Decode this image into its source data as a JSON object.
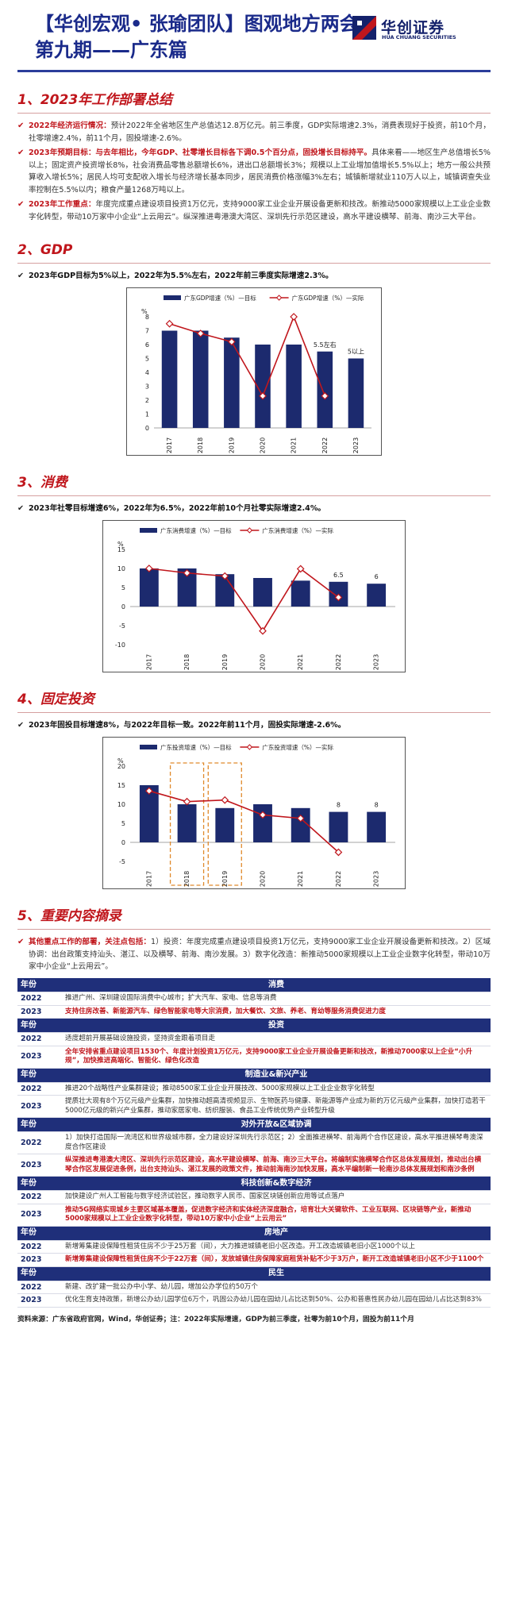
{
  "header": {
    "title_line1": "【华创宏观• 张瑜团队】图观地方两会",
    "title_line2": "第九期——广东篇",
    "logo_cn": "华创证券",
    "logo_en": "HUA CHUANG SECURITIES",
    "brand_color": "#1a2a8a"
  },
  "sections": {
    "s1": {
      "heading": "1、2023年工作部署总结",
      "bullets": [
        {
          "lead": "2022年经济运行情况：",
          "text": "预计2022年全省地区生产总值达12.8万亿元。前三季度，GDP实际增速2.3%，消费表现好于投资，前10个月，社零增速2.4%，前11个月，固投增速-2.6%。",
          "bold": ""
        },
        {
          "lead": "2023年预期目标：与去年相比，今年GDP、社零增长目标各下调0.5个百分点，固投增长目标持平。",
          "text": "具体来看——地区生产总值增长5%以上；固定资产投资增长8%，社会消费品零售总额增长6%，进出口总额增长3%；规模以上工业增加值增长5.5%以上；地方一般公共预算收入增长5%；居民人均可支配收入增长与经济增长基本同步，居民消费价格涨幅3%左右；城镇新增就业110万人以上，城镇调查失业率控制在5.5%以内；粮食产量1268万吨以上。",
          "bold": ""
        },
        {
          "lead": "2023年工作重点：",
          "text": "年度完成重点建设项目投资1万亿元，支持9000家工业企业开展设备更新和技改。新推动5000家规模以上工业企业数字化转型，带动10万家中小企业“上云用云”。纵深推进粤港澳大湾区、深圳先行示范区建设，高水平建设横琴、前海、南沙三大平台。",
          "bold": ""
        }
      ]
    },
    "s2": {
      "heading": "2、GDP",
      "summary": "2023年GDP目标为5%以上，2022年为5.5%左右，2022年前三季度实际增速2.3%。"
    },
    "s3": {
      "heading": "3、消费",
      "summary": "2023年社零目标增速6%，2022年为6.5%，2022年前10个月社零实际增速2.4%。"
    },
    "s4": {
      "heading": "4、固定投资",
      "summary": "2023年固投目标增速8%，与2022年目标一致。2022年前11个月，固投实际增速-2.6%。"
    },
    "s5": {
      "heading": "5、重要内容摘录",
      "intro_lead": "其他重点工作的部署，关注点包括：",
      "intro_text": "1）投资：年度完成重点建设项目投资1万亿元，支持9000家工业企业开展设备更新和技改。2）区域协调：出台政策支持汕头、湛江、以及横琴、前海、南沙发展。3）数字化改造：新推动5000家规模以上工业企业数字化转型，带动10万家中小企业“上云用云”。"
    }
  },
  "chart_data": [
    {
      "type": "bar",
      "id": "gdp",
      "categories": [
        "2017",
        "2018",
        "2019",
        "2020",
        "2021",
        "2022",
        "2023"
      ],
      "unit_label": "%",
      "series": [
        {
          "name": "广东GDP增速（%）—目标",
          "kind": "bar",
          "color": "#1c2a6e",
          "values": [
            7,
            7,
            6.5,
            6,
            6,
            5.5,
            5
          ]
        },
        {
          "name": "广东GDP增速（%）—实际",
          "kind": "line",
          "color": "#c0161c",
          "values": [
            7.5,
            6.8,
            6.2,
            2.3,
            8.0,
            2.3,
            null
          ]
        }
      ],
      "bar_labels": {
        "5": "5.5左右",
        "6": "5以上"
      },
      "yticks": [
        0,
        1,
        2,
        3,
        4,
        5,
        6,
        7,
        8
      ],
      "ylim": [
        0,
        8
      ]
    },
    {
      "type": "bar",
      "id": "consumption",
      "categories": [
        "2017",
        "2018",
        "2019",
        "2020",
        "2021",
        "2022",
        "2023"
      ],
      "unit_label": "%",
      "series": [
        {
          "name": "广东消费增速（%）—目标",
          "kind": "bar",
          "color": "#1c2a6e",
          "values": [
            10,
            10,
            8.5,
            7.5,
            6.8,
            6.5,
            6
          ]
        },
        {
          "name": "广东消费增速（%）—实际",
          "kind": "line",
          "color": "#c0161c",
          "values": [
            10.0,
            8.8,
            8.0,
            -6.4,
            9.9,
            2.4,
            null
          ]
        }
      ],
      "bar_labels": {
        "5": "6.5",
        "6": "6"
      },
      "yticks": [
        -10,
        -5,
        0,
        5,
        10,
        15
      ],
      "ylim": [
        -10,
        15
      ]
    },
    {
      "type": "bar",
      "id": "investment",
      "categories": [
        "2017",
        "2018",
        "2019",
        "2020",
        "2021",
        "2022",
        "2023"
      ],
      "unit_label": "%",
      "series": [
        {
          "name": "广东投资增速（%）—目标",
          "kind": "bar",
          "color": "#1c2a6e",
          "values": [
            15,
            10,
            9,
            10,
            9,
            8,
            8
          ]
        },
        {
          "name": "广东投资增速（%）—实际",
          "kind": "line",
          "color": "#c0161c",
          "values": [
            13.5,
            10.7,
            11.1,
            7.2,
            6.3,
            -2.6,
            null
          ]
        }
      ],
      "bar_labels": {
        "5": "8",
        "6": "8"
      },
      "highlight_categories": [
        "2018",
        "2019"
      ],
      "yticks": [
        -5,
        0,
        5,
        10,
        15,
        20
      ],
      "ylim": [
        -5,
        20
      ]
    }
  ],
  "table": {
    "col_year": "年份",
    "groups": [
      {
        "title": "消费",
        "rows": [
          {
            "year": "2022",
            "text": "推进广州、深圳建设国际消费中心城市；扩大汽车、家电、信息等消费",
            "red": false
          },
          {
            "year": "2023",
            "text": "支持住房改善、新能源汽车、绿色智能家电等大宗消费，加大餐饮、文旅、养老、育幼等服务消费促进力度",
            "red": true
          }
        ]
      },
      {
        "title": "投资",
        "rows": [
          {
            "year": "2022",
            "text": "适度超前开展基础设施投资，坚持资金跟着项目走",
            "red": false
          },
          {
            "year": "2023",
            "text": "全年安排省重点建设项目1530个、年度计划投资1万亿元，支持9000家工业企业开展设备更新和技改，新推动7000家以上企业“小升规”，加快推进高端化、智能化、绿色化改造",
            "red": true
          }
        ]
      },
      {
        "title": "制造业&新兴产业",
        "rows": [
          {
            "year": "2022",
            "text": "推进20个战略性产业集群建设；推动8500家工业企业开展技改、5000家规模以上工业企业数字化转型",
            "red": false
          },
          {
            "year": "2023",
            "text": "提质壮大现有8个万亿元级产业集群，加快推动超高清视频显示、生物医药与健康、新能源等产业成为新的万亿元级产业集群，加快打造若干5000亿元级的新兴产业集群，推动家居家电、纺织服装、食品工业传统优势产业转型升级",
            "red": false
          }
        ]
      },
      {
        "title": "对外开放&区域协调",
        "rows": [
          {
            "year": "2022",
            "text": "1）加快打造国际一流湾区和世界级城市群，全力建设好深圳先行示范区；2）全面推进横琴、前海两个合作区建设，高水平推进横琴粤澳深度合作区建设",
            "red": false
          },
          {
            "year": "2023",
            "text": "纵深推进粤港澳大湾区、深圳先行示范区建设，高水平建设横琴、前海、南沙三大平台。将编制实施横琴合作区总体发展规划，推动出台横琴合作区发展促进条例，出台支持汕头、湛江发展的政策文件，推动前海南沙加快发展，高水平编制新一轮南沙总体发展规划和南沙条例",
            "red": true
          }
        ]
      },
      {
        "title": "科技创新&数字经济",
        "rows": [
          {
            "year": "2022",
            "text": "加快建设广州人工智能与数字经济试验区，推动数字人民币、国家区块链创新应用等试点落户",
            "red": false
          },
          {
            "year": "2023",
            "text": "推动5G网络实现城乡主要区域基本覆盖，促进数字经济和实体经济深度融合，培育壮大关键软件、工业互联网、区块链等产业，新推动5000家规模以上工业企业数字化转型，带动10万家中小企业“上云用云”",
            "red": true
          }
        ]
      },
      {
        "title": "房地产",
        "rows": [
          {
            "year": "2022",
            "text": "新增筹集建设保障性租赁住房不少于25万套（间），大力推进城镇老旧小区改造。开工改造城镇老旧小区1000个以上",
            "red": false
          },
          {
            "year": "2023",
            "text": "新增筹集建设保障性租赁住房不少于22万套（间），发放城镇住房保障家庭租赁补贴不少于3万户，新开工改造城镇老旧小区不少于1100个",
            "red": true
          }
        ]
      },
      {
        "title": "民生",
        "rows": [
          {
            "year": "2022",
            "text": "新建、改扩建一批公办中小学、幼儿园，增加公办学位约50万个",
            "red": false
          },
          {
            "year": "2023",
            "text": "优化生育支持政策，新增公办幼儿园学位6万个，巩固公办幼儿园在园幼儿占比达到50%、公办和普惠性民办幼儿园在园幼儿占比达到83%",
            "red": false
          }
        ]
      }
    ]
  },
  "source": "资料来源：广东省政府官网，Wind，华创证券；注：2022年实际增速，GDP为前三季度，社零为前10个月，固投为前11个月"
}
